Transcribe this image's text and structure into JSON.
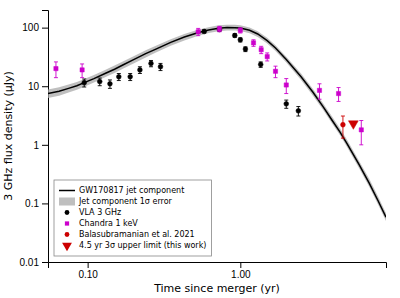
{
  "chart_data": {
    "type": "scatter",
    "xlabel": "Time since merger (yr)",
    "ylabel": "3 GHz flux density (μJy)",
    "log": true,
    "grid": false,
    "legend": "lower left",
    "xlim": [
      0.055,
      9.0
    ],
    "ylim": [
      0.01,
      200
    ],
    "xticks": [
      {
        "value": 0.1,
        "label": "0.10"
      },
      {
        "value": 1,
        "label": "1.00"
      }
    ],
    "yticks": [
      0.01,
      0.1,
      1,
      10,
      100
    ],
    "series": [
      {
        "name": "GW170817 jet component",
        "type": "line",
        "color": "#000000",
        "x": [
          0.055,
          0.065,
          0.075,
          0.085,
          0.095,
          0.11,
          0.13,
          0.15,
          0.17,
          0.2,
          0.24,
          0.28,
          0.35,
          0.43,
          0.52,
          0.62,
          0.72,
          0.82,
          0.92,
          1.0,
          1.15,
          1.3,
          1.5,
          1.7,
          2.0,
          2.5,
          3.0,
          3.5,
          4.0,
          4.5,
          5.0,
          6.0,
          7.0,
          8.0,
          9.0
        ],
        "values": [
          7.5,
          8.2,
          9.2,
          10.2,
          11.5,
          13.5,
          16.5,
          19.5,
          23.0,
          28.5,
          36.0,
          43.0,
          56.0,
          69.0,
          81.0,
          91.0,
          97.5,
          100.5,
          100.0,
          98.5,
          90.0,
          78.0,
          60.0,
          45.0,
          28.5,
          14.5,
          7.8,
          4.4,
          2.6,
          1.65,
          1.05,
          0.46,
          0.22,
          0.11,
          0.058
        ]
      },
      {
        "name": "Jet component 1σ error",
        "type": "area",
        "color": "#aaaaaa",
        "x": [
          0.055,
          0.065,
          0.075,
          0.085,
          0.095,
          0.11,
          0.13,
          0.15,
          0.17,
          0.2,
          0.24,
          0.28,
          0.35,
          0.43,
          0.52,
          0.62,
          0.72,
          0.82,
          0.92,
          1.0,
          1.15,
          1.3,
          1.5,
          1.7,
          2.0,
          2.5,
          3.0,
          3.5,
          4.0,
          4.5,
          5.0,
          6.0,
          7.0,
          8.0,
          9.0
        ],
        "upper": [
          8.8,
          9.6,
          10.7,
          11.8,
          13.3,
          15.5,
          19.0,
          22.5,
          26.5,
          32.5,
          41.0,
          49.0,
          63.5,
          78.0,
          91.5,
          102.0,
          109.5,
          112.5,
          112.0,
          110.0,
          100.5,
          87.0,
          67.0,
          50.0,
          32.0,
          16.5,
          8.9,
          5.0,
          3.0,
          1.9,
          1.22,
          0.53,
          0.26,
          0.13,
          0.068
        ],
        "lower": [
          6.3,
          6.9,
          7.8,
          8.7,
          9.8,
          11.6,
          14.2,
          16.8,
          19.8,
          24.5,
          31.0,
          37.5,
          49.0,
          60.5,
          71.5,
          81.0,
          87.0,
          89.5,
          89.0,
          87.5,
          80.0,
          69.5,
          53.5,
          40.0,
          25.5,
          12.8,
          6.8,
          3.9,
          2.3,
          1.45,
          0.92,
          0.4,
          0.19,
          0.095,
          0.05
        ]
      },
      {
        "name": "VLA 3 GHz",
        "type": "scatter",
        "marker": "circle",
        "color": "#000000",
        "x": [
          0.095,
          0.12,
          0.14,
          0.16,
          0.19,
          0.22,
          0.26,
          0.3,
          0.58,
          0.73,
          0.92,
          1.0,
          1.08,
          1.36,
          2.0,
          2.4
        ],
        "values": [
          11.5,
          12.0,
          11.0,
          14.5,
          14.5,
          19.0,
          24.5,
          21.5,
          86.0,
          93.0,
          73.5,
          62.0,
          43.0,
          23.5,
          5.0,
          3.8
        ],
        "errors": [
          1.8,
          1.8,
          1.8,
          2.0,
          2.0,
          2.5,
          3.0,
          3.0,
          5.0,
          5.0,
          5.0,
          5.0,
          4.0,
          2.5,
          0.8,
          0.7
        ]
      },
      {
        "name": "Chandra 1 keV",
        "type": "scatter",
        "marker": "square",
        "color": "#cc00cc",
        "x": [
          0.062,
          0.092,
          0.53,
          0.73,
          1.0,
          1.22,
          1.37,
          1.5,
          1.7,
          2.0,
          3.3,
          4.4,
          6.2
        ],
        "values": [
          20.0,
          19.0,
          85.0,
          95.0,
          90.0,
          55.0,
          42.0,
          32.0,
          18.0,
          10.5,
          8.5,
          7.5,
          1.8
        ],
        "errors_low": [
          6.0,
          5.0,
          12.0,
          10.0,
          9.0,
          7.0,
          6.0,
          5.0,
          4.0,
          3.0,
          2.5,
          2.0,
          0.8
        ],
        "errors_high": [
          6.0,
          5.0,
          12.0,
          10.0,
          9.0,
          7.0,
          6.0,
          5.0,
          4.0,
          3.0,
          2.5,
          2.0,
          0.8
        ]
      },
      {
        "name": "Balasubramanian et al. 2021",
        "type": "scatter",
        "marker": "circle",
        "color": "#cc0000",
        "x": [
          4.7
        ],
        "values": [
          2.2
        ],
        "errors_low": [
          0.9
        ],
        "errors_high": [
          0.9
        ]
      },
      {
        "name": "4.5 yr 3σ upper limit (this work)",
        "type": "scatter",
        "marker": "triangle-down",
        "color": "#cc0000",
        "x": [
          5.5
        ],
        "values": [
          2.3
        ]
      }
    ]
  }
}
